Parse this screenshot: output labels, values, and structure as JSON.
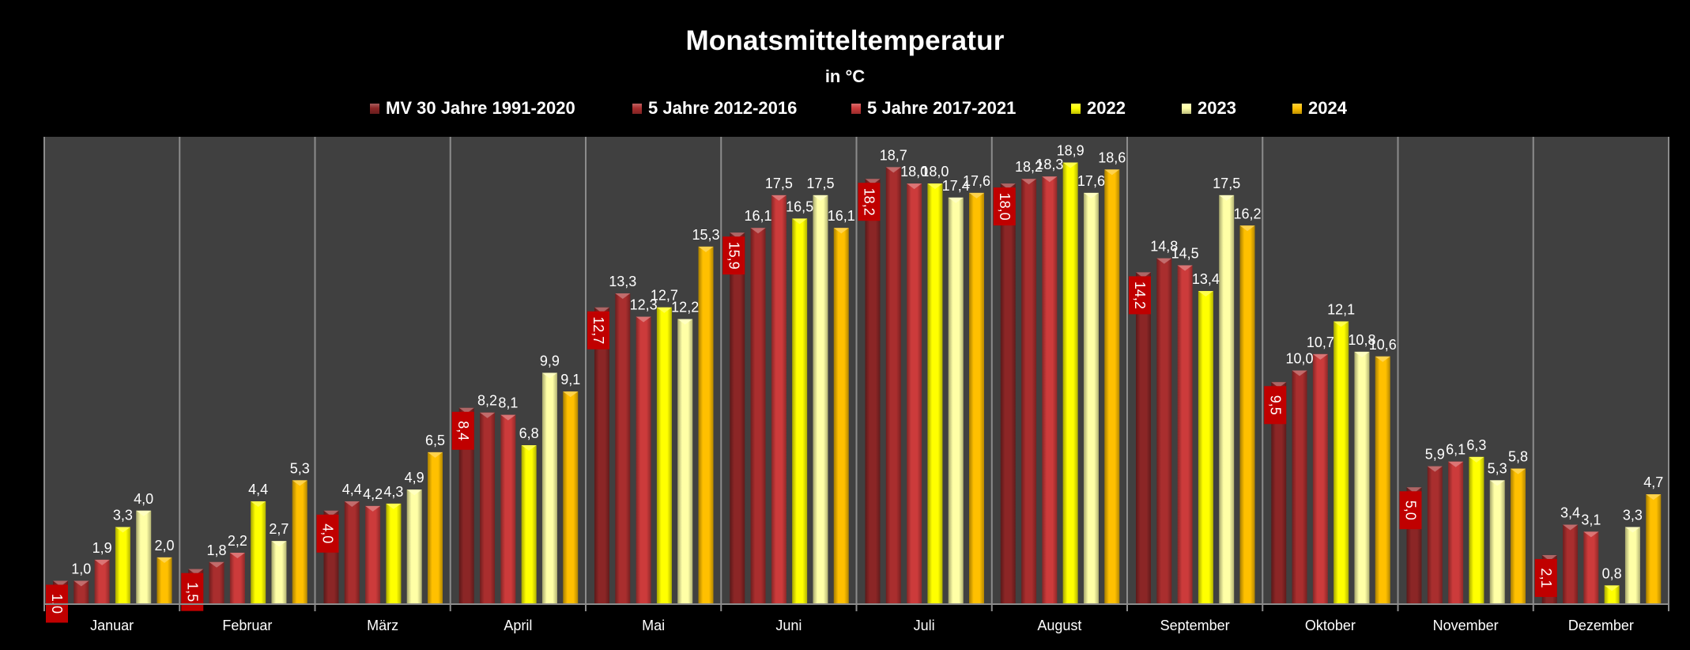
{
  "chart_data": {
    "type": "bar",
    "title": "Monatsmitteltemperatur",
    "subtitle": "in °C",
    "xlabel": "",
    "ylabel": "",
    "ylim": [
      0,
      20
    ],
    "grid": "vertical category separators",
    "legend_position": "top",
    "categories": [
      "Januar",
      "Februar",
      "März",
      "April",
      "Mai",
      "Juni",
      "Juli",
      "August",
      "September",
      "Oktober",
      "November",
      "Dezember"
    ],
    "series": [
      {
        "name": "MV 30 Jahre 1991-2020",
        "color": "#8b2626",
        "label_style": "boxed-rotated",
        "values": [
          1.0,
          1.5,
          4.0,
          8.4,
          12.7,
          15.9,
          18.2,
          18.0,
          14.2,
          9.5,
          5.0,
          2.1
        ],
        "labels": [
          "1,0",
          "1,5",
          "4,0",
          "8,4",
          "12,7",
          "15,9",
          "18,2",
          "18,0",
          "14,2",
          "9,5",
          "5,0",
          "2,1"
        ]
      },
      {
        "name": "5 Jahre 2012-2016",
        "color": "#a92e2e",
        "label_style": "plain",
        "values": [
          1.0,
          1.8,
          4.4,
          8.2,
          13.3,
          16.1,
          18.7,
          18.2,
          14.8,
          10.0,
          5.9,
          3.4
        ],
        "labels": [
          "1,0",
          "1,8",
          "4,4",
          "8,2",
          "13,3",
          "16,1",
          "18,7",
          "18,2",
          "14,8",
          "10,0",
          "5,9",
          "3,4"
        ]
      },
      {
        "name": "5 Jahre 2017-2021",
        "color": "#cc3b3b",
        "label_style": "plain",
        "values": [
          1.9,
          2.2,
          4.2,
          8.1,
          12.3,
          17.5,
          18.0,
          18.3,
          14.5,
          10.7,
          6.1,
          3.1
        ],
        "labels": [
          "1,9",
          "2,2",
          "4,2",
          "8,1",
          "12,3",
          "17,5",
          "18,0",
          "18,3",
          "14,5",
          "10,7",
          "6,1",
          "3,1"
        ]
      },
      {
        "name": "2022",
        "color": "#ffff00",
        "label_style": "plain",
        "values": [
          3.3,
          4.4,
          4.3,
          6.8,
          12.7,
          16.5,
          18.0,
          18.9,
          13.4,
          12.1,
          6.3,
          0.8
        ],
        "labels": [
          "3,3",
          "4,4",
          "4,3",
          "6,8",
          "12,7",
          "16,5",
          "18,0",
          "18,9",
          "13,4",
          "12,1",
          "6,3",
          "0,8"
        ]
      },
      {
        "name": "2023",
        "color": "#ffffa6",
        "label_style": "plain",
        "values": [
          4.0,
          2.7,
          4.9,
          9.9,
          12.2,
          17.5,
          17.4,
          17.6,
          17.5,
          10.8,
          5.3,
          3.3
        ],
        "labels": [
          "4,0",
          "2,7",
          "4,9",
          "9,9",
          "12,2",
          "17,5",
          "17,4",
          "17,6",
          "17,5",
          "10,8",
          "5,3",
          "3,3"
        ]
      },
      {
        "name": "2024",
        "color": "#ffc000",
        "label_style": "plain",
        "values": [
          2.0,
          5.3,
          6.5,
          9.1,
          15.3,
          16.1,
          17.6,
          18.6,
          16.2,
          10.6,
          5.8,
          4.7
        ],
        "labels": [
          "2,0",
          "5,3",
          "6,5",
          "9,1",
          "15,3",
          "16,1",
          "17,6",
          "18,6",
          "16,2",
          "10,6",
          "5,8",
          "4,7"
        ]
      }
    ]
  },
  "colors": {
    "background": "#000000",
    "plot_background": "#404040",
    "gridline": "#8c8c8c",
    "label_box": "#c00000",
    "text": "#ffffff"
  }
}
